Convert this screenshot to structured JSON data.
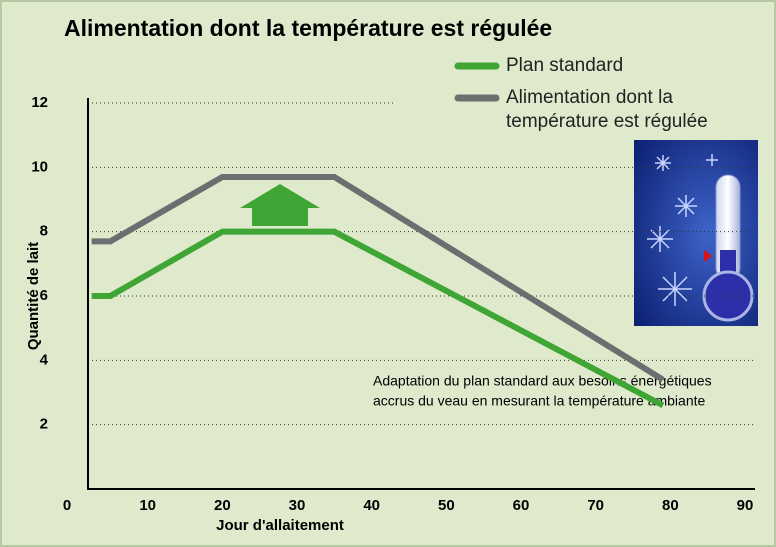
{
  "chart_data": {
    "type": "line",
    "title": "Alimentation dont la température est régulée",
    "x_label": "Jour d'allaitement",
    "y_label": "Quantité de lait",
    "annotation": [
      "Adaptation du plan standard aux besoins énergétiques",
      "accrus du veau en mesurant la température ambiante"
    ],
    "x": [
      2.5,
      5,
      20,
      35,
      79
    ],
    "series": [
      {
        "name": "Plan standard",
        "color": "#3fa535",
        "values": [
          6,
          6,
          8,
          8,
          2.6
        ]
      },
      {
        "name": "Alimentation dont la température est régulée",
        "color": "#6d6e70",
        "values": [
          7.7,
          7.7,
          9.7,
          9.7,
          3.4
        ]
      }
    ],
    "xlim": [
      0,
      90
    ],
    "xticks": [
      0,
      10,
      20,
      30,
      40,
      50,
      60,
      70,
      80,
      90
    ],
    "ylim": [
      0,
      12
    ],
    "yticks": [
      2,
      4,
      6,
      8,
      10,
      12
    ],
    "grid": true
  }
}
